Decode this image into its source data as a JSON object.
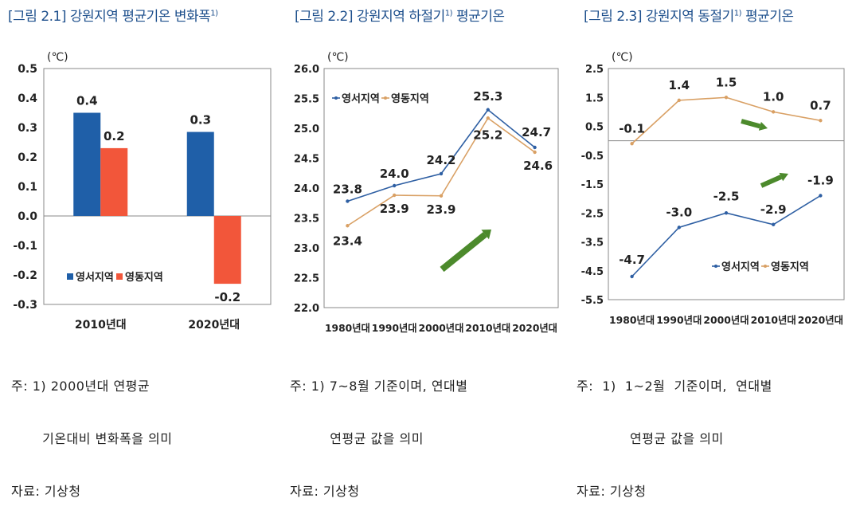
{
  "titles": [
    {
      "text": "[그림 2.1] 강원지역 평균기온 변화폭",
      "sup": "1)"
    },
    {
      "text": "[그림 2.2] 강원지역 하절기",
      "sup": "1)",
      "suffix": " 평균기온"
    },
    {
      "text": "[그림 2.3] 강원지역 동절기",
      "sup": "1)",
      "suffix": " 평균기온"
    }
  ],
  "colors": {
    "series1": "#1f5fa8",
    "series2": "#f2563a",
    "line1": "#2e5fa3",
    "line2": "#d9a064",
    "arrow": "#4c8a2c",
    "title": "#1d4f8c"
  },
  "chart_data": [
    {
      "type": "bar",
      "unit": "(℃)",
      "categories": [
        "2010년대",
        "2020년대"
      ],
      "series": [
        {
          "name": "영서지역",
          "values": [
            0.35,
            0.285
          ],
          "labels": [
            "0.4",
            "0.3"
          ]
        },
        {
          "name": "영동지역",
          "values": [
            0.23,
            -0.23
          ],
          "labels": [
            "0.2",
            "-0.2"
          ]
        }
      ],
      "ylim": [
        -0.3,
        0.5
      ],
      "yticks": [
        "0.5",
        "0.4",
        "0.3",
        "0.2",
        "0.1",
        "0.0",
        "-0.1",
        "-0.2",
        "-0.3"
      ],
      "legend": "bottom-left",
      "grid": false
    },
    {
      "type": "line",
      "unit": "(℃)",
      "categories": [
        "1980년대",
        "1990년대",
        "2000년대",
        "2010년대",
        "2020년대"
      ],
      "series": [
        {
          "name": "영서지역",
          "values": [
            23.78,
            24.04,
            24.24,
            25.31,
            24.68
          ],
          "labels": [
            "23.8",
            "24.0",
            "24.2",
            "25.3",
            "24.7"
          ]
        },
        {
          "name": "영동지역",
          "values": [
            23.37,
            23.88,
            23.87,
            25.17,
            24.6
          ],
          "labels": [
            "23.4",
            "23.9",
            "23.9",
            "25.2",
            "24.6"
          ]
        }
      ],
      "ylim": [
        22.0,
        26.0
      ],
      "yticks": [
        "26.0",
        "25.5",
        "25.0",
        "24.5",
        "24.0",
        "23.5",
        "23.0",
        "22.5",
        "22.0"
      ],
      "legend": "top-left",
      "grid": false
    },
    {
      "type": "line",
      "unit": "(℃)",
      "categories": [
        "1980년대",
        "1990년대",
        "2000년대",
        "2010년대",
        "2020년대"
      ],
      "series": [
        {
          "name": "영서지역",
          "values": [
            -4.7,
            -3.0,
            -2.5,
            -2.9,
            -1.9
          ],
          "labels": [
            "-4.7",
            "-3.0",
            "-2.5",
            "-2.9",
            "-1.9"
          ]
        },
        {
          "name": "영동지역",
          "values": [
            -0.1,
            1.4,
            1.5,
            1.0,
            0.7
          ],
          "labels": [
            "-0.1",
            "1.4",
            "1.5",
            "1.0",
            "0.7"
          ]
        }
      ],
      "ylim": [
        -5.5,
        2.5
      ],
      "yticks": [
        "2.5",
        "1.5",
        "0.5",
        "-0.5",
        "-1.5",
        "-2.5",
        "-3.5",
        "-4.5",
        "-5.5"
      ],
      "legend": "bottom-right",
      "grid": false
    }
  ],
  "notes": [
    [
      "주: 1) 2000년대 연평균",
      "       기온대비 변화폭을 의미",
      "자료: 기상청"
    ],
    [
      "주: 1) 7~8월 기준이며, 연대별",
      "         연평균 값을 의미",
      "자료: 기상청"
    ],
    [
      "주:  1)  1~2월  기준이며,  연대별",
      "            연평균 값을 의미",
      "자료: 기상청"
    ]
  ]
}
